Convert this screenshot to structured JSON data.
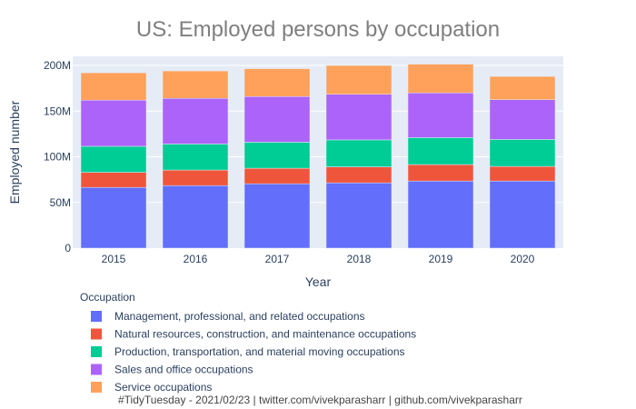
{
  "chart_data": {
    "type": "bar",
    "stacked": true,
    "title": "US: Employed persons by occupation",
    "xlabel": "Year",
    "ylabel": "Employed number",
    "categories": [
      "2015",
      "2016",
      "2017",
      "2018",
      "2019",
      "2020"
    ],
    "ylim": [
      0,
      210000000
    ],
    "yticks": [
      0,
      50000000,
      100000000,
      150000000,
      200000000
    ],
    "ytick_labels": [
      "0",
      "50M",
      "100M",
      "150M",
      "200M"
    ],
    "grid": true,
    "legend_title": "Occupation",
    "legend_position": "bottom-left",
    "series": [
      {
        "name": "Management, professional, and related occupations",
        "color": "#636efa",
        "values": [
          66500000,
          68500000,
          70500000,
          71500000,
          73500000,
          73500000
        ]
      },
      {
        "name": "Natural resources, construction, and maintenance occupations",
        "color": "#ef553b",
        "values": [
          16500000,
          17000000,
          17000000,
          17500000,
          18000000,
          16000000
        ]
      },
      {
        "name": "Production, transportation, and material moving occupations",
        "color": "#00cc96",
        "values": [
          28500000,
          28500000,
          28500000,
          29500000,
          29500000,
          29500000
        ]
      },
      {
        "name": "Sales and office occupations",
        "color": "#ab63fa",
        "values": [
          50500000,
          50000000,
          50000000,
          50000000,
          49000000,
          43500000
        ]
      },
      {
        "name": "Service occupations",
        "color": "#ffa15a",
        "values": [
          30000000,
          30000000,
          30500000,
          31500000,
          31500000,
          25500000
        ]
      }
    ],
    "caption": "#TidyTuesday - 2021/02/23 | twitter.com/vivekparasharr | github.com/vivekparasharr"
  }
}
